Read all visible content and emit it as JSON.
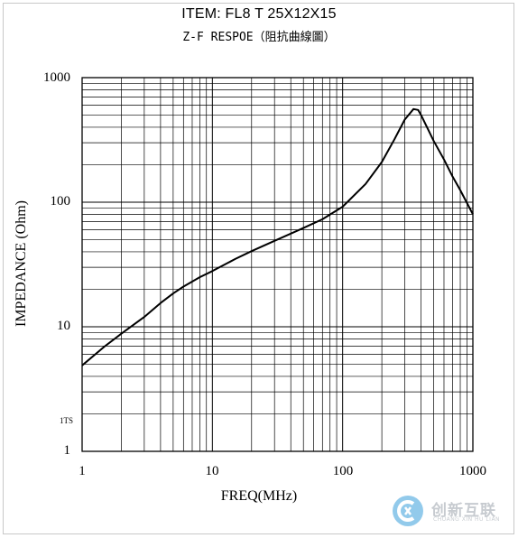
{
  "header": {
    "item_line": "ITEM:   FL8 T 25X12X15",
    "subtitle": "Z-F RESPOE（阻抗曲線圖）"
  },
  "chart_data": {
    "type": "line",
    "title": "ITEM:   FL8 T 25X12X15",
    "subtitle": "Z-F RESPOE（阻抗曲線圖）",
    "xlabel": "FREQ(MHz)",
    "ylabel": "IMPEDANCE (Ohm)",
    "xscale": "log",
    "yscale": "log",
    "xlim": [
      1,
      1000
    ],
    "ylim": [
      1,
      1000
    ],
    "grid": true,
    "x_ticks": [
      "1",
      "10",
      "100",
      "1000"
    ],
    "y_ticks": [
      "1",
      "10",
      "100",
      "1000"
    ],
    "minor_label": "1TS",
    "series": [
      {
        "x": [
          1,
          1.5,
          2,
          3,
          4,
          5,
          6,
          8,
          10,
          15,
          20,
          30,
          50,
          70,
          100,
          150,
          200,
          250,
          300,
          350,
          380,
          400,
          450,
          500,
          600,
          700,
          800,
          1000
        ],
        "y": [
          4.9,
          7,
          8.8,
          12,
          15.5,
          18.5,
          21,
          25,
          28,
          35,
          40.5,
          49,
          62,
          73,
          92,
          140,
          210,
          320,
          460,
          560,
          550,
          500,
          390,
          310,
          220,
          160,
          125,
          80
        ]
      }
    ]
  },
  "watermark": {
    "text": "创新互联",
    "sub": "CHUANG XIN HU LIAN",
    "color": "#3aa0dc"
  }
}
